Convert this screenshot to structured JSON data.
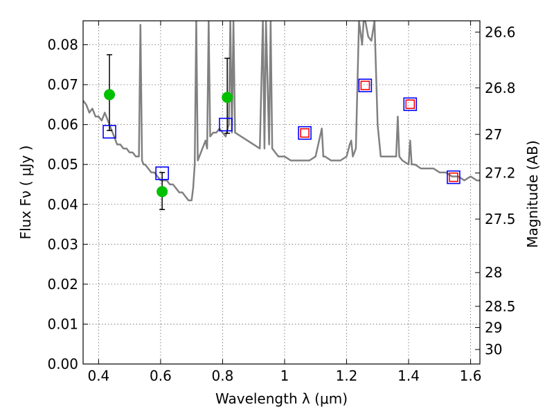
{
  "chart_data": {
    "type": "scatter",
    "xlabel": "Wavelength  λ (μm)",
    "ylabel": "Flux  Fν  ( μJy )",
    "ylabel_right": "Magnitude (AB)",
    "xlim": [
      0.35,
      1.63
    ],
    "ylim": [
      0.0,
      0.086
    ],
    "grid": true,
    "x_ticks": [
      {
        "value": 0.4,
        "label": "0.4"
      },
      {
        "value": 0.6,
        "label": "0.6"
      },
      {
        "value": 0.8,
        "label": "0.8"
      },
      {
        "value": 1.0,
        "label": "1"
      },
      {
        "value": 1.2,
        "label": "1.2"
      },
      {
        "value": 1.4,
        "label": "1.4"
      },
      {
        "value": 1.6,
        "label": "1.6"
      }
    ],
    "y_ticks": [
      {
        "value": 0.0,
        "label": "0.00"
      },
      {
        "value": 0.01,
        "label": "0.01"
      },
      {
        "value": 0.02,
        "label": "0.02"
      },
      {
        "value": 0.03,
        "label": "0.03"
      },
      {
        "value": 0.04,
        "label": "0.04"
      },
      {
        "value": 0.05,
        "label": "0.05"
      },
      {
        "value": 0.06,
        "label": "0.06"
      },
      {
        "value": 0.07,
        "label": "0.07"
      },
      {
        "value": 0.08,
        "label": "0.08"
      }
    ],
    "right_ticks": [
      {
        "value": 26.6,
        "label": "26.6"
      },
      {
        "value": 26.8,
        "label": "26.8"
      },
      {
        "value": 27.0,
        "label": "27"
      },
      {
        "value": 27.2,
        "label": "27.2"
      },
      {
        "value": 27.5,
        "label": "27.5"
      },
      {
        "value": 28.0,
        "label": "28"
      },
      {
        "value": 28.5,
        "label": "28.5"
      },
      {
        "value": 29.0,
        "label": "29"
      },
      {
        "value": 30.0,
        "label": "30"
      }
    ],
    "series": [
      {
        "kind": "line",
        "color": "#808080",
        "x": [
          0.35,
          0.36,
          0.37,
          0.38,
          0.39,
          0.4,
          0.41,
          0.42,
          0.43,
          0.44,
          0.45,
          0.46,
          0.47,
          0.48,
          0.49,
          0.5,
          0.51,
          0.52,
          0.53,
          0.535,
          0.54,
          0.545,
          0.55,
          0.56,
          0.57,
          0.58,
          0.59,
          0.6,
          0.61,
          0.62,
          0.63,
          0.64,
          0.65,
          0.66,
          0.67,
          0.68,
          0.69,
          0.7,
          0.705,
          0.71,
          0.715,
          0.72,
          0.73,
          0.74,
          0.745,
          0.75,
          0.755,
          0.76,
          0.77,
          0.78,
          0.79,
          0.8,
          0.81,
          0.82,
          0.825,
          0.83,
          0.835,
          0.84,
          0.86,
          0.88,
          0.9,
          0.92,
          0.93,
          0.935,
          0.94,
          0.95,
          0.955,
          0.96,
          0.97,
          0.98,
          1.0,
          1.02,
          1.04,
          1.06,
          1.08,
          1.1,
          1.12,
          1.125,
          1.13,
          1.15,
          1.18,
          1.2,
          1.21,
          1.215,
          1.22,
          1.23,
          1.24,
          1.25,
          1.255,
          1.26,
          1.27,
          1.28,
          1.29,
          1.3,
          1.31,
          1.32,
          1.34,
          1.36,
          1.365,
          1.37,
          1.38,
          1.4,
          1.405,
          1.41,
          1.42,
          1.44,
          1.46,
          1.48,
          1.5,
          1.52,
          1.54,
          1.56,
          1.58,
          1.6,
          1.62,
          1.63
        ],
        "y": [
          0.066,
          0.065,
          0.063,
          0.064,
          0.062,
          0.062,
          0.061,
          0.063,
          0.061,
          0.059,
          0.057,
          0.055,
          0.055,
          0.054,
          0.054,
          0.053,
          0.053,
          0.052,
          0.052,
          0.085,
          0.051,
          0.05,
          0.05,
          0.049,
          0.048,
          0.048,
          0.047,
          0.046,
          0.046,
          0.046,
          0.045,
          0.045,
          0.044,
          0.043,
          0.043,
          0.042,
          0.041,
          0.041,
          0.044,
          0.05,
          0.086,
          0.051,
          0.053,
          0.055,
          0.056,
          0.054,
          0.086,
          0.057,
          0.058,
          0.058,
          0.059,
          0.058,
          0.057,
          0.06,
          0.086,
          0.058,
          0.086,
          0.058,
          0.057,
          0.056,
          0.055,
          0.054,
          0.086,
          0.054,
          0.086,
          0.055,
          0.086,
          0.054,
          0.053,
          0.052,
          0.052,
          0.051,
          0.051,
          0.051,
          0.051,
          0.052,
          0.059,
          0.052,
          0.052,
          0.051,
          0.051,
          0.052,
          0.055,
          0.056,
          0.052,
          0.054,
          0.086,
          0.08,
          0.086,
          0.086,
          0.082,
          0.081,
          0.086,
          0.06,
          0.052,
          0.052,
          0.052,
          0.052,
          0.062,
          0.052,
          0.051,
          0.05,
          0.056,
          0.05,
          0.05,
          0.049,
          0.049,
          0.049,
          0.048,
          0.048,
          0.047,
          0.047,
          0.046,
          0.047,
          0.046,
          0.046
        ]
      },
      {
        "kind": "scatter-errorbar",
        "marker": "filled-circle",
        "color": "#00c000",
        "x": [
          0.435,
          0.605,
          0.815
        ],
        "y": [
          0.0675,
          0.0432,
          0.0668
        ],
        "yerr_low": [
          0.009,
          0.0045,
          0.009
        ],
        "yerr_high": [
          0.01,
          0.0048,
          0.0098
        ]
      },
      {
        "kind": "scatter",
        "marker": "open-square",
        "color": "#0000ff",
        "x": [
          0.435,
          0.605,
          0.81,
          1.065,
          1.26,
          1.405,
          1.545
        ],
        "y": [
          0.0582,
          0.0478,
          0.06,
          0.0579,
          0.0698,
          0.0651,
          0.0468
        ]
      },
      {
        "kind": "scatter",
        "marker": "open-square-small",
        "color": "#ff0000",
        "x": [
          1.065,
          1.26,
          1.405,
          1.545
        ],
        "y": [
          0.0579,
          0.0698,
          0.0651,
          0.0468
        ]
      }
    ]
  }
}
